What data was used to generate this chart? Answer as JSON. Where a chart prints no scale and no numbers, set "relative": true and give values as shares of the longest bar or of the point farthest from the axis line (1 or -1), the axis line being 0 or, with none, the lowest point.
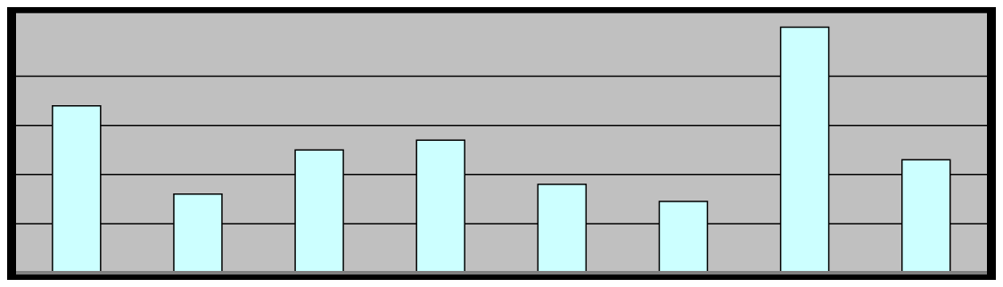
{
  "chart_data": {
    "type": "bar",
    "relative": true,
    "categories": [
      null,
      null,
      null,
      null,
      null,
      null,
      null,
      null
    ],
    "values": [
      0.68,
      0.32,
      0.5,
      0.54,
      0.36,
      0.29,
      1,
      0.46
    ],
    "color": "#ccffff",
    "grid": "y"
  }
}
